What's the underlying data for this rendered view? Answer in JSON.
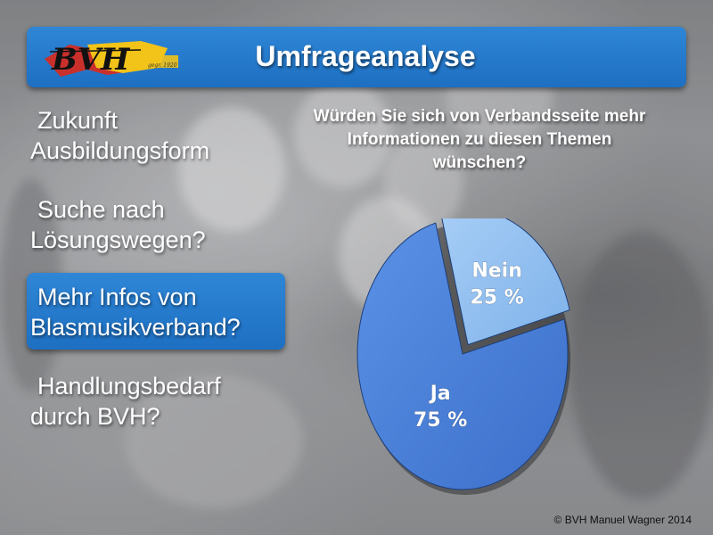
{
  "slide": {
    "title": "Umfrageanalyse",
    "logo_text": "BVH",
    "logo_subtext": "gegr. 1920",
    "bullets": [
      {
        "line1": "Zukunft",
        "line2": "Ausbildungsform",
        "highlighted": false
      },
      {
        "line1": "Suche nach",
        "line2": "Lösungswegen?",
        "highlighted": false
      },
      {
        "line1": "Mehr Infos von",
        "line2": "Blasmusikverband?",
        "highlighted": true
      },
      {
        "line1": "Handlungsbedarf",
        "line2": "durch BVH?",
        "highlighted": false
      }
    ],
    "copyright": "© BVH Manuel Wagner 2014",
    "accent_color": "#1d6fc2"
  },
  "chart_data": {
    "type": "pie",
    "title": "Würden Sie sich von Verbandsseite mehr Informationen zu diesen Themen wünschen?",
    "title_lines": [
      "Würden Sie sich von Verbandsseite mehr",
      "Informationen zu diesen Themen",
      "wünschen?"
    ],
    "slices": [
      {
        "label": "Nein",
        "value": 25,
        "value_label": "25 %",
        "color": "#8fbef0",
        "exploded": true
      },
      {
        "label": "Ja",
        "value": 75,
        "value_label": "75 %",
        "color": "#4a80dc",
        "exploded": false
      }
    ]
  }
}
